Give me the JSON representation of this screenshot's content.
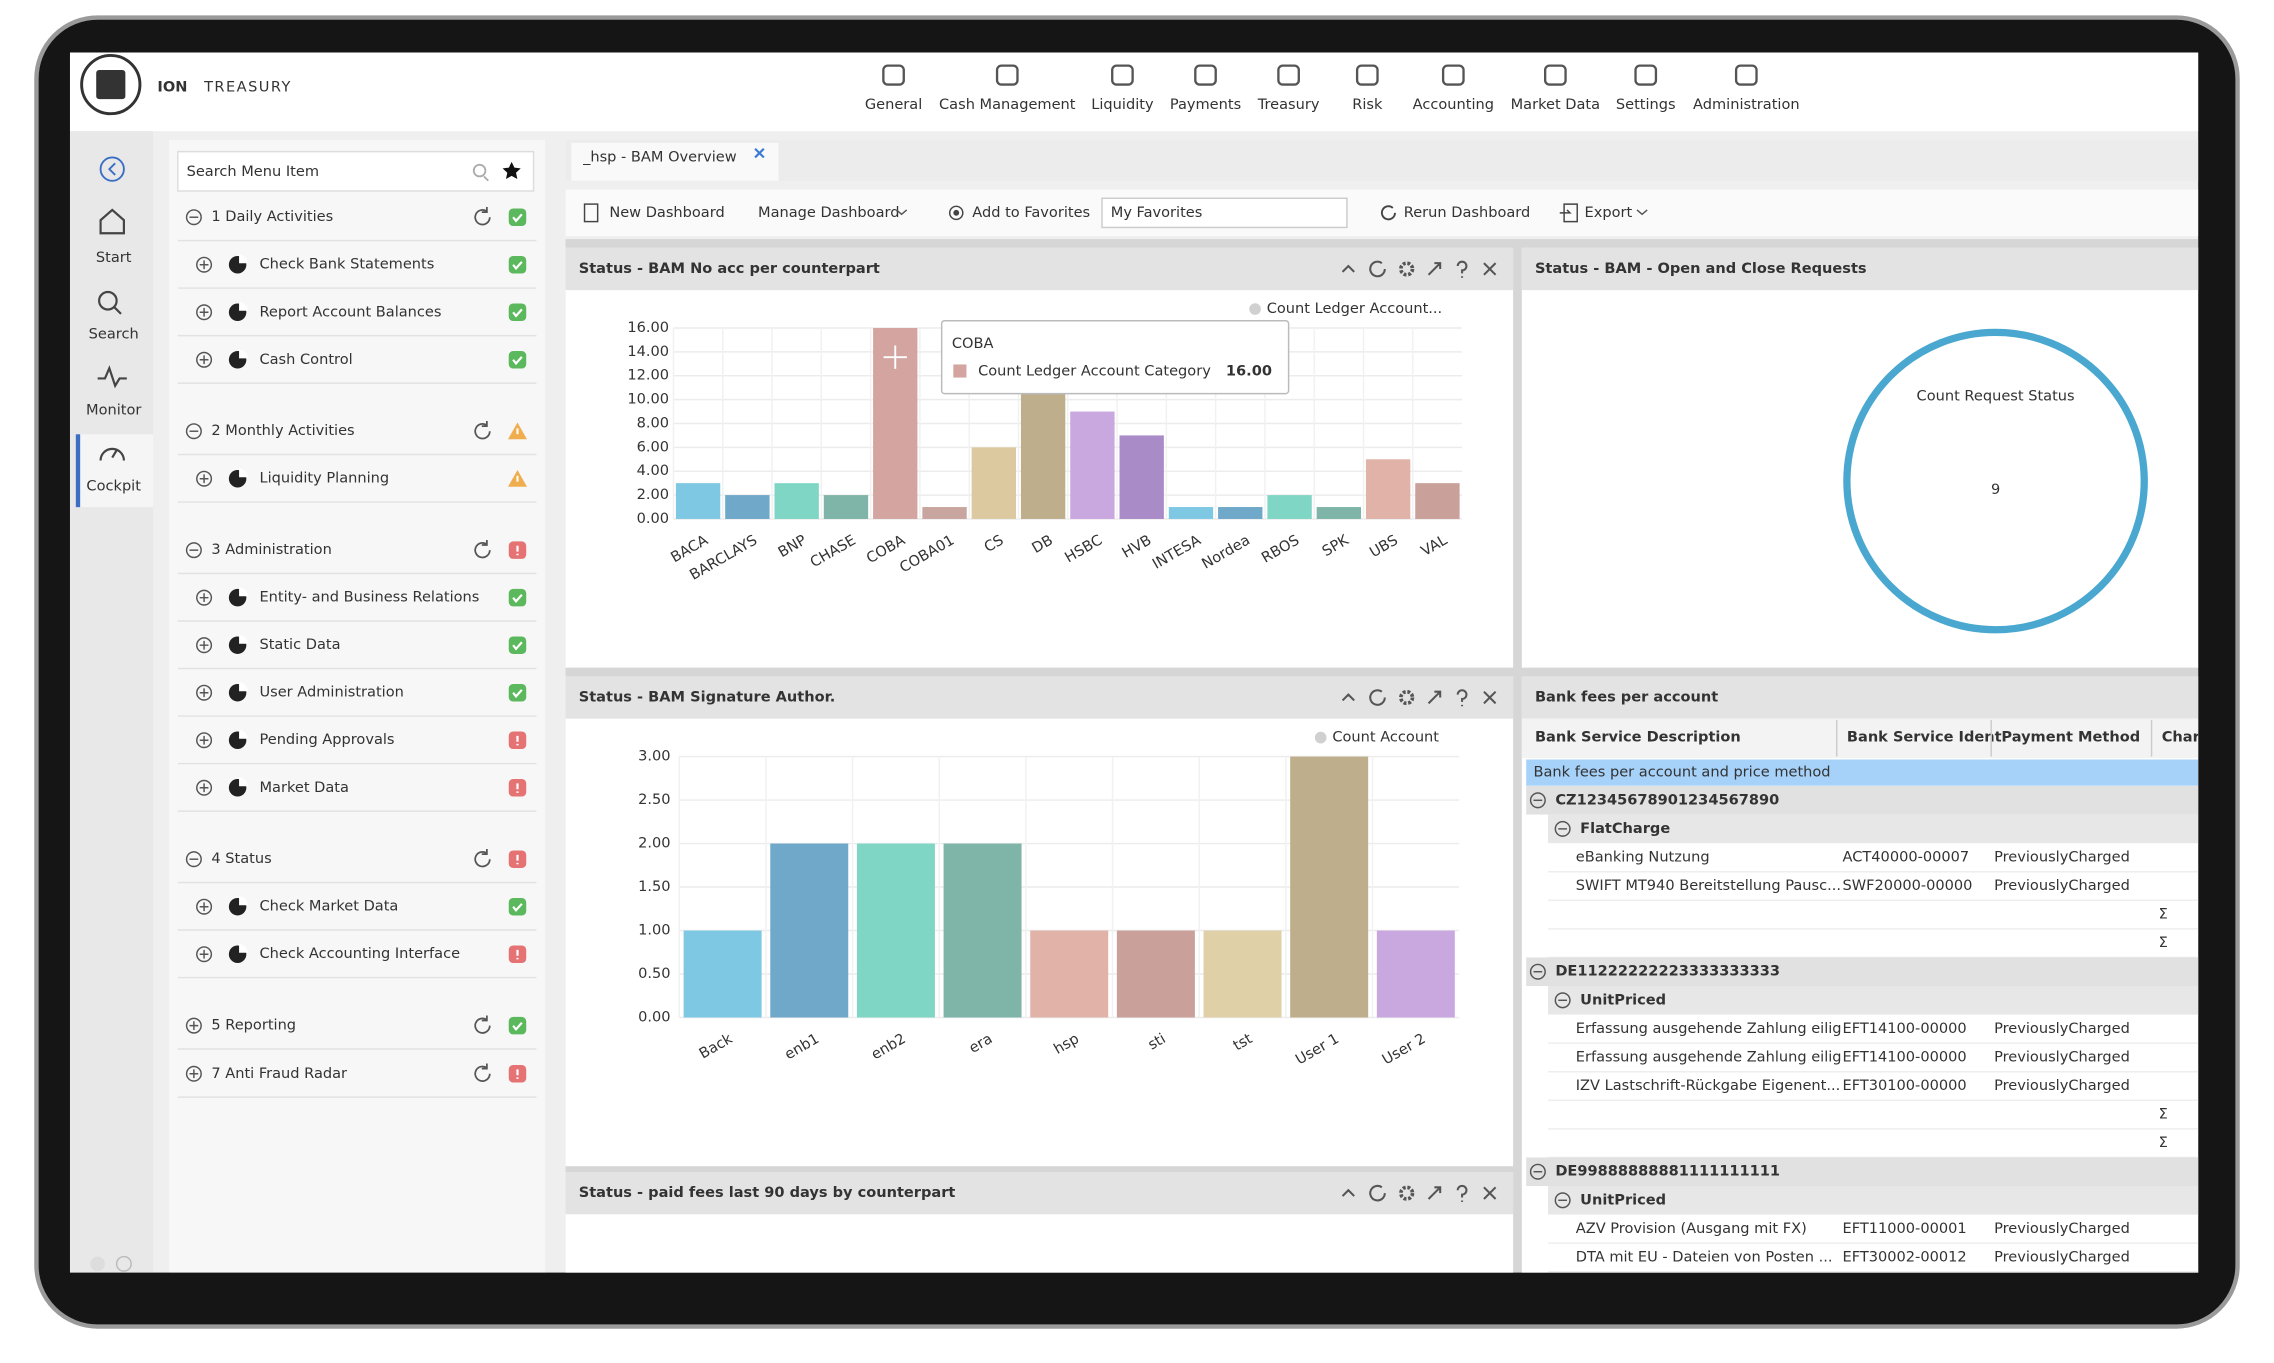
{
  "header": {
    "brand": "ION",
    "product": "TREASURY",
    "nav": [
      "General",
      "Cash Management",
      "Liquidity",
      "Payments",
      "Treasury",
      "Risk",
      "Accounting",
      "Market Data",
      "Settings",
      "Administration"
    ]
  },
  "sidebar": {
    "items": [
      "Start",
      "Search",
      "Monitor",
      "Cockpit"
    ],
    "active": "Cockpit"
  },
  "menu": {
    "search_placeholder": "Search Menu Item",
    "groups": [
      {
        "label": "1 Daily Activities",
        "status": "ok",
        "expanded": true,
        "items": [
          {
            "label": "Check Bank Statements",
            "status": "ok"
          },
          {
            "label": "Report Account Balances",
            "status": "ok"
          },
          {
            "label": "Cash Control",
            "status": "ok"
          }
        ]
      },
      {
        "label": "2 Monthly Activities",
        "status": "warn",
        "expanded": true,
        "items": [
          {
            "label": "Liquidity Planning",
            "status": "warn"
          }
        ]
      },
      {
        "label": "3 Administration",
        "status": "error",
        "expanded": true,
        "items": [
          {
            "label": "Entity- and Business Relations",
            "status": "ok"
          },
          {
            "label": "Static Data",
            "status": "ok"
          },
          {
            "label": "User Administration",
            "status": "ok"
          },
          {
            "label": "Pending Approvals",
            "status": "error"
          },
          {
            "label": "Market Data",
            "status": "error"
          }
        ]
      },
      {
        "label": "4 Status",
        "status": "error",
        "expanded": true,
        "items": [
          {
            "label": "Check Market Data",
            "status": "ok"
          },
          {
            "label": "Check Accounting Interface",
            "status": "error"
          }
        ]
      },
      {
        "label": "5 Reporting",
        "status": "ok",
        "expanded": false,
        "items": []
      },
      {
        "label": "7 Anti Fraud Radar",
        "status": "error",
        "expanded": false,
        "items": []
      }
    ]
  },
  "tab": "_hsp - BAM Overview",
  "toolbar": {
    "new_dashboard": "New Dashboard",
    "manage_dashboard": "Manage Dashboard",
    "add_favorites": "Add to Favorites",
    "favorites_select": "My Favorites",
    "rerun": "Rerun Dashboard",
    "export": "Export"
  },
  "chart_data": [
    {
      "type": "bar",
      "title": "Status - BAM No acc per counterpart",
      "categories": [
        "BACA",
        "BARCLAYS",
        "BNP",
        "CHASE",
        "COBA",
        "COBA01",
        "CS",
        "DB",
        "HSBC",
        "HVB",
        "INTESA",
        "Nordea",
        "RBOS",
        "SPK",
        "UBS",
        "VAL"
      ],
      "values": [
        3,
        2,
        3,
        2,
        16,
        1,
        6,
        11,
        9,
        7,
        1,
        1,
        2,
        1,
        5,
        3
      ],
      "colors": [
        "#7ec8e3",
        "#6fa8c8",
        "#7fd6c4",
        "#7fb5a8",
        "#d4a5a0",
        "#c9a59f",
        "#dcc9a0",
        "#bfae8c",
        "#c9a8e0",
        "#a98bc7",
        "#7ec8e3",
        "#6fa8c8",
        "#7fd6c4",
        "#7fb5a8",
        "#e0b2a8",
        "#c9a09a"
      ],
      "legend": "Count Ledger Account...",
      "ylim": [
        0,
        16
      ],
      "yticks": [
        {
          "value": 0,
          "label": "0.00"
        },
        {
          "value": 2,
          "label": "2.00"
        },
        {
          "value": 4,
          "label": "4.00"
        },
        {
          "value": 6,
          "label": "6.00"
        },
        {
          "value": 8,
          "label": "8.00"
        },
        {
          "value": 10,
          "label": "10.00"
        },
        {
          "value": 12,
          "label": "12.00"
        },
        {
          "value": 14,
          "label": "14.00"
        },
        {
          "value": 16,
          "label": "16.00"
        }
      ],
      "grid": true,
      "tooltip": {
        "title": "COBA",
        "series": "Count Ledger Account Category",
        "value_label": "16.00"
      }
    },
    {
      "type": "bar",
      "title": "Status - BAM Signature Author.",
      "categories": [
        "Back",
        "enb1",
        "enb2",
        "era",
        "hsp",
        "sti",
        "tst",
        "User 1",
        "User 2"
      ],
      "values": [
        1,
        2,
        2,
        2,
        1,
        1,
        1,
        3,
        1
      ],
      "colors": [
        "#7ec8e3",
        "#6fa8c8",
        "#7fd6c4",
        "#7fb5a8",
        "#e0b2a8",
        "#c9a09a",
        "#e0d0a8",
        "#bfae8c",
        "#c9a8e0"
      ],
      "legend": "Count Account",
      "ylim": [
        0,
        3
      ],
      "yticks": [
        {
          "value": 0,
          "label": "0.00"
        },
        {
          "value": 0.5,
          "label": "0.50"
        },
        {
          "value": 1,
          "label": "1.00"
        },
        {
          "value": 1.5,
          "label": "1.50"
        },
        {
          "value": 2,
          "label": "2.00"
        },
        {
          "value": 2.5,
          "label": "2.50"
        },
        {
          "value": 3,
          "label": "3.00"
        }
      ],
      "grid": true
    }
  ],
  "request_panel": {
    "title": "Status - BAM - Open and Close Requests",
    "label": "Count Request Status",
    "value": 9
  },
  "fees_panel": {
    "title": "Status - paid fees last 90 days by counterpart"
  },
  "fees_table": {
    "title": "Bank fees per account",
    "columns": [
      "Bank Service Description",
      "Bank Service Ident",
      "Payment Method",
      "Char"
    ],
    "group_header": "Bank fees per account and price method",
    "sum_symbol": "Σ",
    "accounts": [
      {
        "account": "CZ12345678901234567890",
        "methods": [
          {
            "name": "FlatCharge",
            "rows": [
              [
                "eBanking Nutzung",
                "ACT40000-00007",
                "PreviouslyCharged"
              ],
              [
                "SWIFT MT940 Bereitstellung Pausc...",
                "SWF20000-00000",
                "PreviouslyCharged"
              ]
            ]
          }
        ]
      },
      {
        "account": "DE11222222223333333333",
        "methods": [
          {
            "name": "UnitPriced",
            "rows": [
              [
                "Erfassung ausgehende Zahlung eilig",
                "EFT14100-00000",
                "PreviouslyCharged"
              ],
              [
                "Erfassung ausgehende Zahlung eilig",
                "EFT14100-00000",
                "PreviouslyCharged"
              ],
              [
                "IZV Lastschrift-Rückgabe Eigenent...",
                "EFT30100-00000",
                "PreviouslyCharged"
              ]
            ]
          }
        ]
      },
      {
        "account": "DE99888888881111111111",
        "methods": [
          {
            "name": "UnitPriced",
            "rows": [
              [
                "AZV Provision (Ausgang mit FX)",
                "EFT11000-00001",
                "PreviouslyCharged"
              ],
              [
                "DTA mit EU - Dateien von Posten ...",
                "EFT30002-00012",
                "PreviouslyCharged"
              ]
            ]
          }
        ]
      }
    ]
  }
}
